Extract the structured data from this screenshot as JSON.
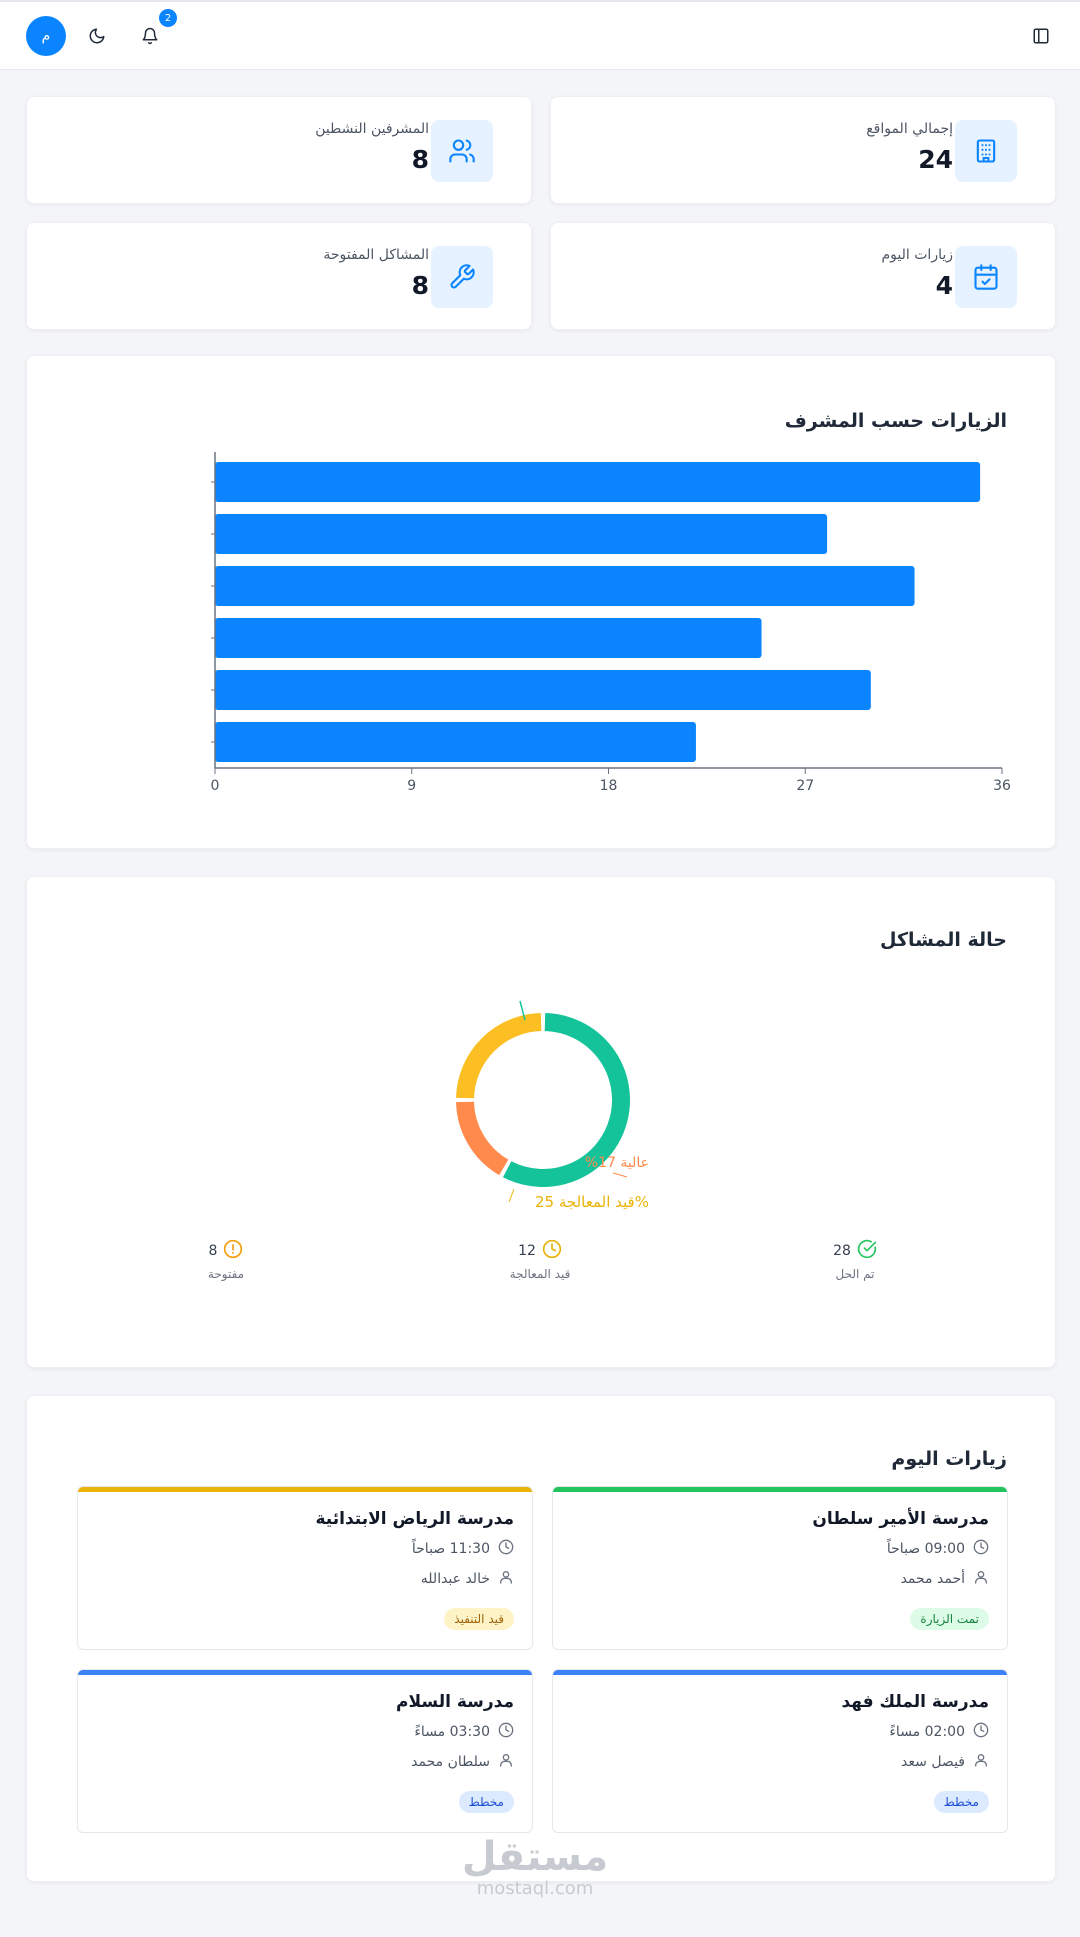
{
  "header": {
    "avatar_initial": "م",
    "notification_count": "2",
    "icons": [
      "moon-icon",
      "bell-icon",
      "sidebar-toggle-icon"
    ]
  },
  "stats": [
    {
      "label": "إجمالي المواقع",
      "value": "24",
      "icon": "building-icon"
    },
    {
      "label": "المشرفين النشطين",
      "value": "8",
      "icon": "users-icon"
    },
    {
      "label": "زيارات اليوم",
      "value": "4",
      "icon": "calendar-check-icon"
    },
    {
      "label": "المشاكل المفتوحة",
      "value": "8",
      "icon": "wrench-icon"
    }
  ],
  "visits_chart": {
    "title": "الزيارات حسب المشرف",
    "chart_data": {
      "type": "bar",
      "orientation": "horizontal",
      "values": [
        35,
        28,
        32,
        25,
        30,
        22
      ],
      "xlim": [
        0,
        36
      ],
      "xticks": [
        "0",
        "9",
        "18",
        "27",
        "36"
      ],
      "color": "#0a84ff"
    }
  },
  "issues_chart": {
    "title": "حالة المشاكل",
    "chart_data": {
      "type": "pie",
      "categories": [
        "تم الحل",
        "عالية",
        "قيد المعالجة"
      ],
      "values": [
        58,
        17,
        25
      ],
      "colors": [
        "#14c39a",
        "#ff8a4c",
        "#fbbf24"
      ],
      "labels": [
        "%17",
        "قيد المعالجة 25%"
      ],
      "partial_label": "عالية"
    },
    "legend": [
      {
        "value": "28",
        "label": "تم الحل",
        "icon": "check-circle-icon",
        "color": "#22c55e"
      },
      {
        "value": "12",
        "label": "قيد المعالجة",
        "icon": "clock-icon",
        "color": "#eab308"
      },
      {
        "value": "8",
        "label": "مفتوحة",
        "icon": "alert-circle-icon",
        "color": "#f59e0b"
      }
    ]
  },
  "today_visits": {
    "title": "زيارات اليوم",
    "items": [
      {
        "school": "مدرسة الأمير سلطان",
        "time": "09:00 صباحاً",
        "supervisor": "أحمد محمد",
        "status": "تمت الزيارة",
        "bar_color": "#22c55e",
        "status_bg": "#dcfce7",
        "status_color": "#15803d"
      },
      {
        "school": "مدرسة الرياض الابتدائية",
        "time": "11:30 صباحاً",
        "supervisor": "خالد عبدالله",
        "status": "قيد التنفيذ",
        "bar_color": "#eab308",
        "status_bg": "#fef3c7",
        "status_color": "#a16207"
      },
      {
        "school": "مدرسة الملك فهد",
        "time": "02:00 مساءً",
        "supervisor": "فيصل سعد",
        "status": "مخطط",
        "bar_color": "#3b82f6",
        "status_bg": "#dbeafe",
        "status_color": "#1d4ed8"
      },
      {
        "school": "مدرسة السلام",
        "time": "03:30 مساءً",
        "supervisor": "سلطان محمد",
        "status": "مخطط",
        "bar_color": "#3b82f6",
        "status_bg": "#dbeafe",
        "status_color": "#1d4ed8"
      }
    ]
  },
  "watermark": {
    "arabic": "مستقل",
    "latin": "mostaql.com"
  }
}
